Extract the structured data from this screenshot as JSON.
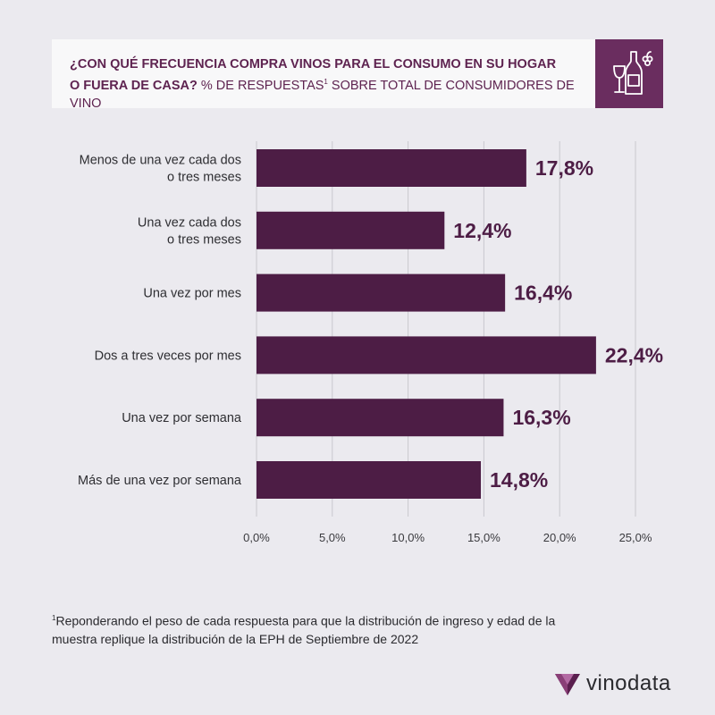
{
  "header": {
    "title_bold_line1": "¿Con qué frecuencia compra vinos para el consumo en su hogar",
    "title_bold_line2": "o fuera de casa?",
    "subtitle_before_sup": "% de respuestas",
    "subtitle_sup": "1",
    "subtitle_after_sup": " sobre total de consumidores de vino",
    "icon": "wine-bottle-glass-grapes-icon"
  },
  "chart_data": {
    "type": "bar",
    "orientation": "horizontal",
    "categories": [
      "Menos de una vez cada dos o tres meses",
      "Una vez cada dos o tres meses",
      "Una vez por mes",
      "Dos a tres veces por mes",
      "Una vez por semana",
      "Más de una vez por semana"
    ],
    "category_lines": [
      [
        "Menos de una vez cada dos",
        "o tres meses"
      ],
      [
        "Una vez cada dos",
        "o tres meses"
      ],
      [
        "Una vez por mes"
      ],
      [
        "Dos a tres veces por mes"
      ],
      [
        "Una vez por semana"
      ],
      [
        "Más de una vez por semana"
      ]
    ],
    "values": [
      17.8,
      12.4,
      16.4,
      22.4,
      16.3,
      14.8
    ],
    "value_labels": [
      "17,8%",
      "12,4%",
      "16,4%",
      "22,4%",
      "16,3%",
      "14,8%"
    ],
    "x_ticks": [
      0,
      5,
      10,
      15,
      20,
      25
    ],
    "x_tick_labels": [
      "0,0%",
      "5,0%",
      "10,0%",
      "15,0%",
      "20,0%",
      "25,0%"
    ],
    "xlim": [
      0,
      25
    ],
    "grid": "vertical",
    "bar_color": "#4d1d45",
    "label_color": "#4d1d45"
  },
  "footnote": {
    "marker": "1",
    "text_line1": "Reponderando el peso de cada respuesta para que la distribución de ingreso y edad de la",
    "text_line2": "muestra replique la distribución de la EPH de Septiembre de 2022"
  },
  "brand": {
    "name": "vinodata",
    "logo_icon": "vinodata-logo-icon"
  },
  "colors": {
    "background": "#ebeaef",
    "header_bg": "#f8f8f9",
    "accent": "#6a2d5f",
    "text_dark": "#2a2a2e"
  }
}
